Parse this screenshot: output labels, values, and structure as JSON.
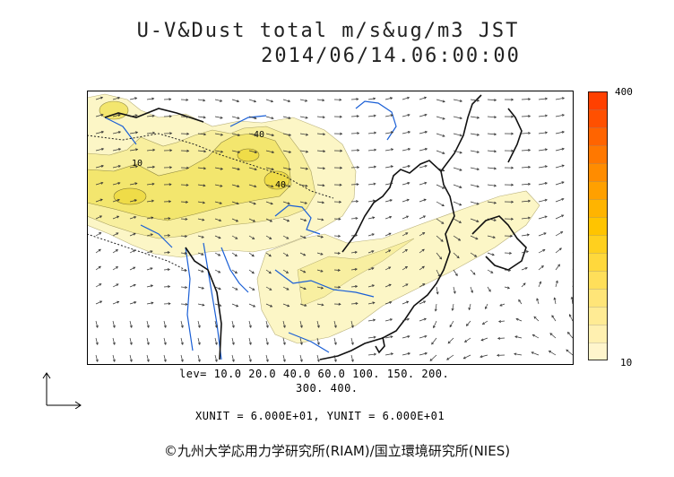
{
  "title": {
    "line1": "U-V&Dust total m/s&ug/m3 JST",
    "line2": "2014/06/14.06:00:00"
  },
  "contour_labels": [
    "40",
    "10",
    "40"
  ],
  "colorbar": {
    "max_label": "400",
    "min_label": "10",
    "colors": [
      "#fff5cc",
      "#fff0b0",
      "#ffeb94",
      "#ffe578",
      "#ffdf5a",
      "#ffd83c",
      "#ffd01e",
      "#ffc400",
      "#ffb400",
      "#ffa000",
      "#ff8c00",
      "#ff7800",
      "#ff6400",
      "#ff5000",
      "#ff4000"
    ]
  },
  "legend": {
    "lev_line1": "lev= 10.0 20.0 40.0 60.0 100. 150. 200.",
    "lev_line2": "300. 400.",
    "unit_line": "XUNIT = 6.000E+01, YUNIT = 6.000E+01"
  },
  "copyright": "©九州大学応用力学研究所(RIAM)/国立環境研究所(NIES)"
}
